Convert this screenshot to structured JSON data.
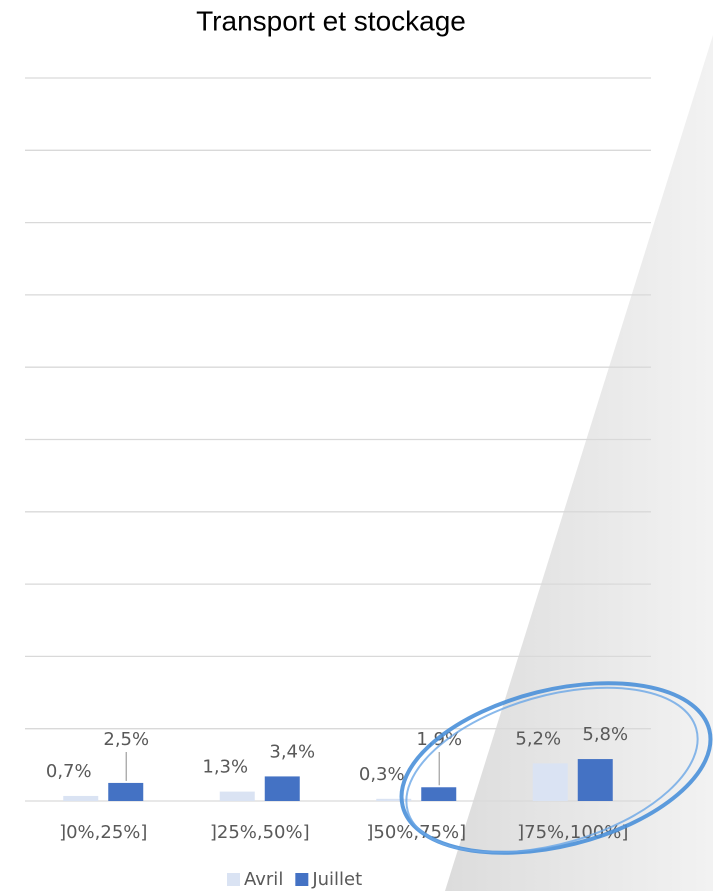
{
  "chart_data": {
    "type": "bar",
    "title": "Transport et stockage",
    "categories": [
      "]0%,25%]",
      "]25%,50%]",
      "]50%,75%]",
      "]75%,100%]"
    ],
    "series": [
      {
        "name": "Avril",
        "color": "#dae3f3",
        "values": [
          0.7,
          1.3,
          0.3,
          5.2
        ],
        "value_labels": [
          "0,7%",
          "1,3%",
          "0,3%",
          "5,2%"
        ]
      },
      {
        "name": "Juillet",
        "color": "#4472c4",
        "values": [
          2.5,
          3.4,
          1.9,
          5.8
        ],
        "value_labels": [
          "2,5%",
          "3,4%",
          "1,9%",
          "5,8%"
        ]
      }
    ],
    "ylim": [
      0,
      100
    ],
    "yticks": [
      0,
      10,
      20,
      30,
      40,
      50,
      60,
      70,
      80,
      90,
      100
    ],
    "grid": true,
    "show_tick_labels": false,
    "legend": "bottom"
  }
}
